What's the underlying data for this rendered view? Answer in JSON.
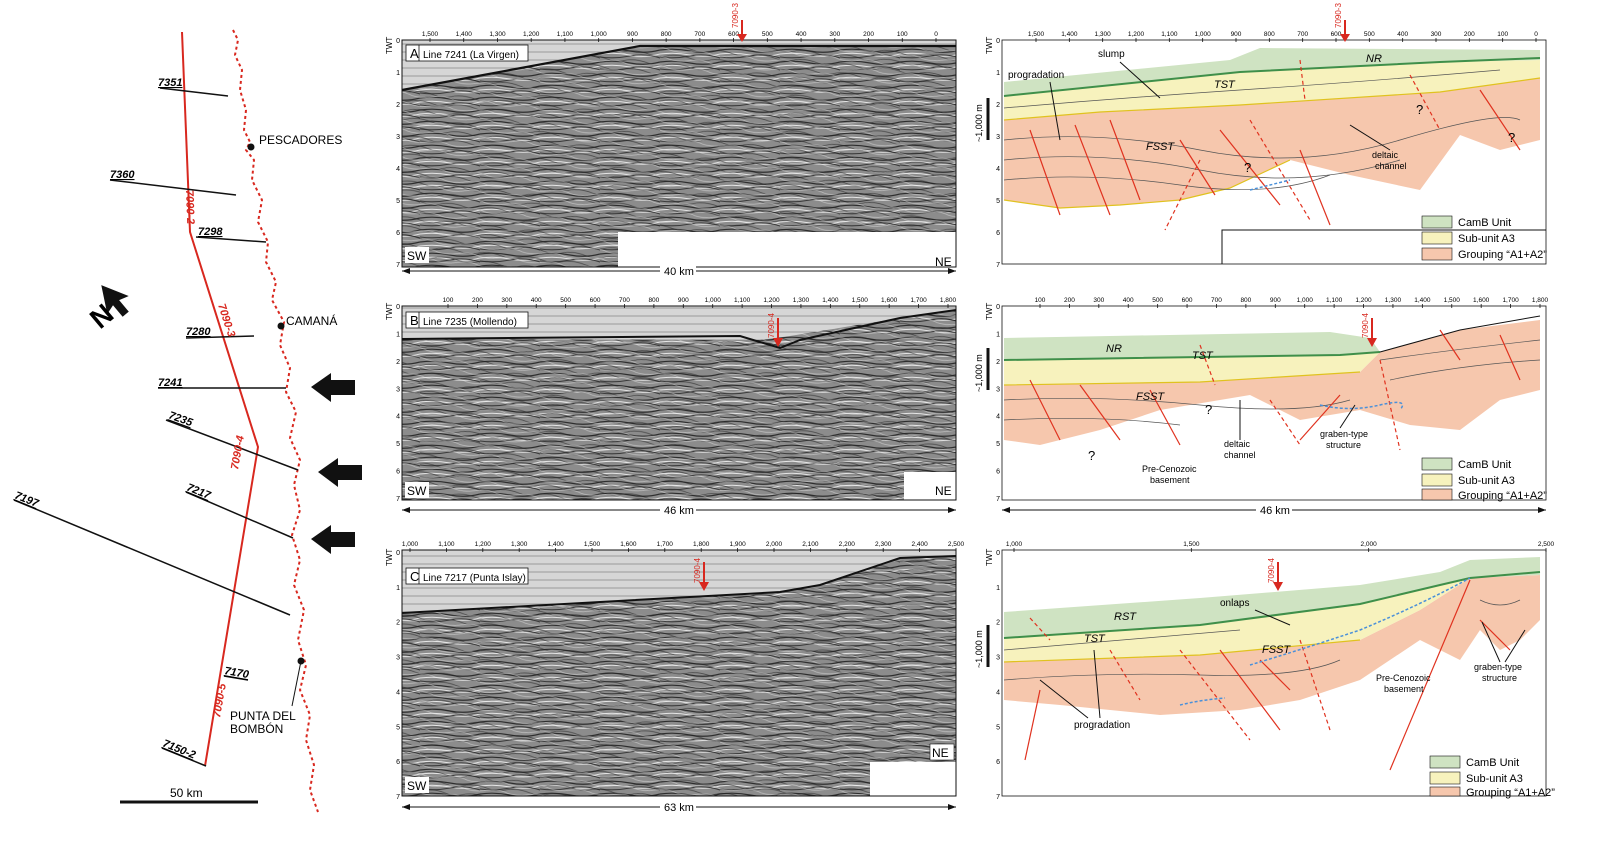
{
  "map": {
    "place_names": [
      "PESCADORES",
      "CAMANÁ",
      "PUNTA DEL",
      "BOMBÓN"
    ],
    "line_labels": [
      "7351",
      "7360",
      "7298",
      "7280",
      "7241",
      "7235",
      "7217",
      "7197",
      "7170",
      "7150-2"
    ],
    "strike_lines": [
      "7090-2",
      "7090-3",
      "7090-4",
      "7090-5"
    ],
    "scale_label": "50 km",
    "north_label": "N"
  },
  "panels": [
    {
      "letter": "A",
      "title": "Line 7241 (La Virgen)",
      "distance": "40 km",
      "axis_ticks": [
        "1,500",
        "1,400",
        "1,300",
        "1,200",
        "1,100",
        "1,000",
        "900",
        "800",
        "700",
        "600",
        "500",
        "400",
        "300",
        "200",
        "100",
        "0"
      ],
      "tie": "7090-3",
      "sw": "SW",
      "ne": "NE"
    },
    {
      "letter": "B",
      "title": "Line 7235 (Mollendo)",
      "distance": "46 km",
      "axis_ticks": [
        "100",
        "200",
        "300",
        "400",
        "500",
        "600",
        "700",
        "800",
        "900",
        "1,000",
        "1,100",
        "1,200",
        "1,300",
        "1,400",
        "1,500",
        "1,600",
        "1,700",
        "1,800"
      ],
      "tie": "7090-4",
      "sw": "SW",
      "ne": "NE"
    },
    {
      "letter": "C",
      "title": "Line 7217 (Punta Islay)",
      "distance": "63 km",
      "axis_ticks": [
        "1,000",
        "1,100",
        "1,200",
        "1,300",
        "1,400",
        "1,500",
        "1,600",
        "1,700",
        "1,800",
        "1,900",
        "2,000",
        "2,100",
        "2,200",
        "2,300",
        "2,400",
        "2,500"
      ],
      "axis_ticks_interp": [
        "1,000",
        "1,500",
        "2,000",
        "2,500"
      ],
      "tie": "7090-4",
      "sw": "SW",
      "ne": "NE"
    }
  ],
  "twt_label": "TWT",
  "twt_ticks": [
    "0",
    "1",
    "2",
    "3",
    "4",
    "5",
    "6",
    "7"
  ],
  "scale_bar": "~1,000 m",
  "interpretation_labels": {
    "A": [
      "progradation",
      "slump",
      "TST",
      "NR",
      "FSST",
      "deltaic",
      "channel",
      "?"
    ],
    "B": [
      "NR",
      "TST",
      "FSST",
      "deltaic",
      "channel",
      "graben-type",
      "structure",
      "Pre-Cenozoic",
      "basement",
      "?"
    ],
    "C": [
      "RST",
      "TST",
      "FSST",
      "onlaps",
      "Pre-Cenozoic",
      "basement",
      "progradation",
      "graben-type",
      "structure"
    ]
  },
  "legend": [
    {
      "label": "CamB Unit",
      "color": "#cfe3c2"
    },
    {
      "label": "Sub-unit A3",
      "color": "#f7f2bd"
    },
    {
      "label": "Grouping “A1+A2”",
      "color": "#f6c7ad"
    }
  ],
  "colors": {
    "map_line": "#d8281f",
    "coast": "#d8281f",
    "green": "#cfe3c2",
    "green_dark": "#3f8f4a",
    "yellow": "#f7f2bd",
    "salmon": "#f6c7ad",
    "fault": "#e0321f",
    "blue": "#4a90d9",
    "seismic": "#7a7a7a"
  }
}
